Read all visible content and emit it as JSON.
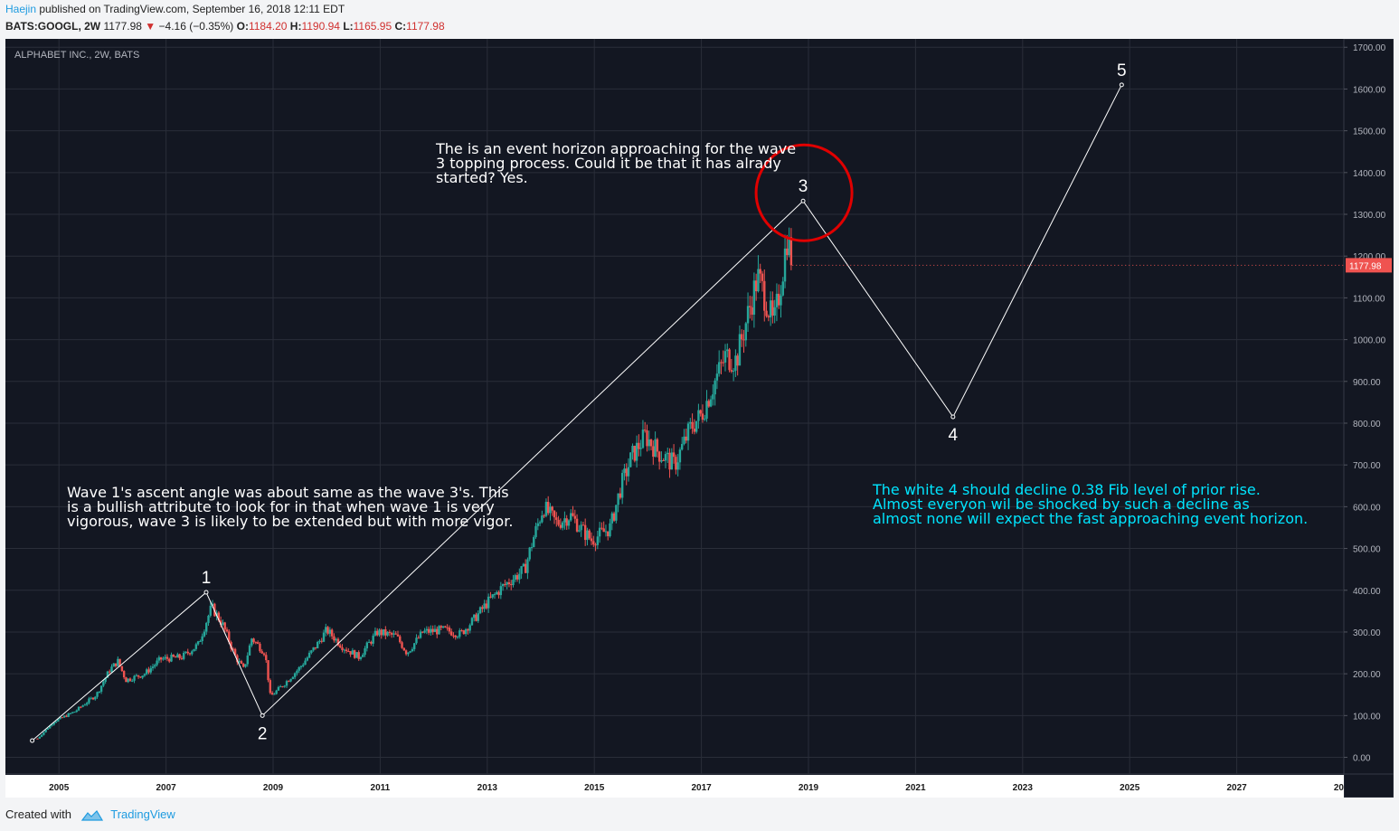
{
  "header": {
    "author": "Haejin",
    "published": "published on TradingView.com, September 16, 2018 12:11 EDT",
    "symbol": "BATS:GOOGL, 2W",
    "last": "1177.98",
    "change_arrow": "▼",
    "change": "−4.16 (−0.35%)",
    "o_label": "O:",
    "o_value": "1184.20",
    "h_label": "H:",
    "h_value": "1190.94",
    "l_label": "L:",
    "l_value": "1165.95",
    "c_label": "C:",
    "c_value": "1177.98"
  },
  "footer": {
    "created_with": "Created with",
    "brand": "TradingView",
    "logo_icon": "tradingview-logo-icon"
  },
  "colors": {
    "background": "#131722",
    "grid": "#2a2e39",
    "up": "#26a69a",
    "down": "#ef5350",
    "annotation_white": "#ffffff",
    "annotation_cyan": "#00e5ff",
    "circle": "#e00000",
    "price_tag": "#ef5350",
    "axis_text": "#b2b5be"
  },
  "chart_data": {
    "type": "candlestick",
    "title": "ALPHABET INC., 2W, BATS",
    "y_axis_position": "right",
    "ylim": [
      -40,
      1720
    ],
    "xlim": [
      2004.0,
      2029.0
    ],
    "y_ticks": [
      "1700.00",
      "1600.00",
      "1500.00",
      "1400.00",
      "1300.00",
      "1200.00",
      "1100.00",
      "1000.00",
      "900.00",
      "800.00",
      "700.00",
      "600.00",
      "500.00",
      "400.00",
      "300.00",
      "200.00",
      "100.00",
      "0.00"
    ],
    "x_ticks": [
      "2005",
      "2007",
      "2009",
      "2011",
      "2013",
      "2015",
      "2017",
      "2019",
      "2021",
      "2023",
      "2025",
      "2027",
      "20"
    ],
    "last_price": "1177.98",
    "price_trend_approx": [
      [
        2004.6,
        45
      ],
      [
        2004.9,
        85
      ],
      [
        2005.3,
        110
      ],
      [
        2005.7,
        150
      ],
      [
        2005.95,
        210
      ],
      [
        2006.1,
        230
      ],
      [
        2006.25,
        185
      ],
      [
        2006.6,
        200
      ],
      [
        2006.9,
        235
      ],
      [
        2007.3,
        240
      ],
      [
        2007.6,
        270
      ],
      [
        2007.85,
        360
      ],
      [
        2008.05,
        320
      ],
      [
        2008.3,
        240
      ],
      [
        2008.45,
        210
      ],
      [
        2008.6,
        285
      ],
      [
        2008.85,
        250
      ],
      [
        2008.95,
        145
      ],
      [
        2009.2,
        175
      ],
      [
        2009.5,
        215
      ],
      [
        2009.85,
        275
      ],
      [
        2010.0,
        305
      ],
      [
        2010.3,
        265
      ],
      [
        2010.6,
        240
      ],
      [
        2010.95,
        300
      ],
      [
        2011.3,
        290
      ],
      [
        2011.5,
        250
      ],
      [
        2011.8,
        300
      ],
      [
        2012.2,
        305
      ],
      [
        2012.5,
        295
      ],
      [
        2012.75,
        330
      ],
      [
        2013.0,
        370
      ],
      [
        2013.3,
        410
      ],
      [
        2013.7,
        450
      ],
      [
        2013.85,
        520
      ],
      [
        2014.05,
        600
      ],
      [
        2014.3,
        560
      ],
      [
        2014.55,
        580
      ],
      [
        2014.8,
        540
      ],
      [
        2014.95,
        520
      ],
      [
        2015.3,
        550
      ],
      [
        2015.5,
        650
      ],
      [
        2015.7,
        720
      ],
      [
        2015.95,
        770
      ],
      [
        2016.2,
        730
      ],
      [
        2016.5,
        700
      ],
      [
        2016.8,
        790
      ],
      [
        2017.0,
        820
      ],
      [
        2017.25,
        900
      ],
      [
        2017.45,
        960
      ],
      [
        2017.65,
        950
      ],
      [
        2017.85,
        1050
      ],
      [
        2018.05,
        1150
      ],
      [
        2018.2,
        1100
      ],
      [
        2018.35,
        1030
      ],
      [
        2018.5,
        1150
      ],
      [
        2018.6,
        1245
      ],
      [
        2018.7,
        1185
      ]
    ],
    "wave_points": [
      {
        "label": "",
        "x": 2004.5,
        "y": 40
      },
      {
        "label": "1",
        "x": 2007.75,
        "y": 395
      },
      {
        "label": "2",
        "x": 2008.8,
        "y": 100
      },
      {
        "label": "3",
        "x": 2018.9,
        "y": 1332
      },
      {
        "label": "4",
        "x": 2021.7,
        "y": 815
      },
      {
        "label": "5",
        "x": 2024.85,
        "y": 1610
      }
    ],
    "annotations": [
      {
        "lines": [
          "The is an event horizon approaching for the wave",
          "3 topping process. Could it be that it has alrady",
          "started? Yes."
        ],
        "color": "white"
      },
      {
        "lines": [
          "Wave 1's ascent angle was about same as the wave 3's. This",
          "is a bullish attribute to look for in that when wave 1 is very",
          "vigorous, wave 3 is likely to be extended but with more vigor."
        ],
        "color": "white"
      },
      {
        "lines": [
          "The white 4 should decline 0.38 Fib level of prior rise.",
          "Almost everyon wil be shocked by such a decline as",
          "almost none will expect the fast approaching event horizon."
        ],
        "color": "cyan"
      }
    ]
  }
}
